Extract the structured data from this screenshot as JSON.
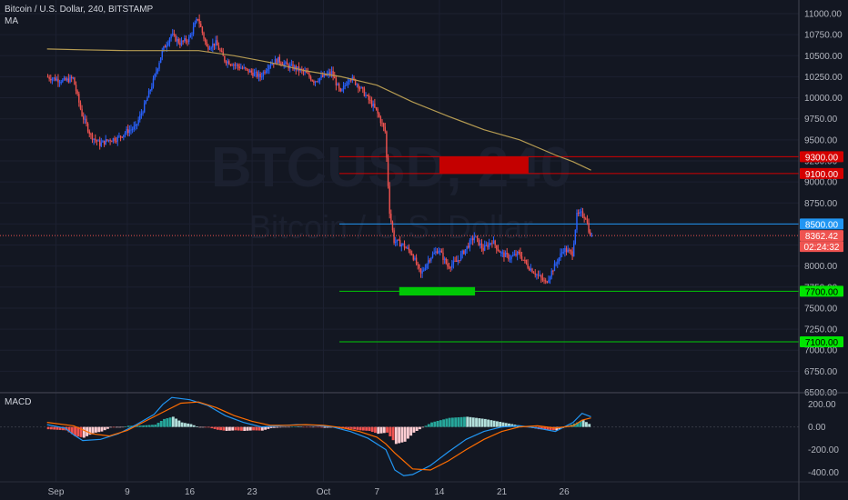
{
  "header": {
    "symbol_title": "Bitcoin / U.S. Dollar, 240, BITSTAMP",
    "indicator_label": "MA"
  },
  "watermark": {
    "ticker": "BTCUSD, 240",
    "name": "Bitcoin / U.S. Dollar"
  },
  "macd": {
    "label": "MACD",
    "ticks": [
      "200.00",
      "0.00",
      "-200.00",
      "-400.00"
    ]
  },
  "price_axis": {
    "ticks": [
      "11000.00",
      "10750.00",
      "10500.00",
      "10250.00",
      "10000.00",
      "9750.00",
      "9500.00",
      "9250.00",
      "9000.00",
      "8750.00",
      "8500.00",
      "8250.00",
      "8000.00",
      "7750.00",
      "7500.00",
      "7250.00",
      "7000.00",
      "6750.00",
      "6500.00"
    ]
  },
  "time_axis": {
    "labels": [
      "Sep",
      "9",
      "16",
      "23",
      "Oct",
      "7",
      "14",
      "21",
      "26"
    ]
  },
  "badges": {
    "res_top": "9300.00",
    "res_bottom": "9100.00",
    "blue_level": "8500.00",
    "last_price": "8362.42",
    "countdown": "02:24:32",
    "support": "7700.00",
    "low_support": "7100.00"
  },
  "colors": {
    "background": "#131722",
    "up": "#2962ff",
    "down": "#ef5350",
    "ma": "#b59b52",
    "resistance": "#d50000",
    "support": "#00c805",
    "blue_line": "#2196f3"
  },
  "chart_data": {
    "type": "candlestick",
    "symbol": "BTCUSD",
    "exchange": "BITSTAMP",
    "interval": "240",
    "ylim": [
      6500,
      11050
    ],
    "x_axis": [
      "Sep",
      "9",
      "16",
      "23",
      "Oct",
      "7",
      "14",
      "21",
      "26"
    ],
    "price_path": [
      [
        -1,
        10250
      ],
      [
        1,
        10200
      ],
      [
        2,
        10230
      ],
      [
        3,
        9800
      ],
      [
        4,
        9550
      ],
      [
        5,
        9450
      ],
      [
        6,
        9500
      ],
      [
        7,
        9520
      ],
      [
        8,
        9600
      ],
      [
        9,
        9650
      ],
      [
        10,
        9900
      ],
      [
        11,
        10200
      ],
      [
        12,
        10550
      ],
      [
        13,
        10750
      ],
      [
        14,
        10650
      ],
      [
        15,
        10700
      ],
      [
        16,
        10950
      ],
      [
        17,
        10600
      ],
      [
        18,
        10650
      ],
      [
        19,
        10450
      ],
      [
        20,
        10400
      ],
      [
        21,
        10350
      ],
      [
        22,
        10300
      ],
      [
        23,
        10250
      ],
      [
        24,
        10400
      ],
      [
        25,
        10450
      ],
      [
        26,
        10380
      ],
      [
        27,
        10350
      ],
      [
        28,
        10300
      ],
      [
        29,
        10200
      ],
      [
        30,
        10250
      ],
      [
        31,
        10300
      ],
      [
        32,
        10050
      ],
      [
        33,
        10250
      ],
      [
        34,
        10150
      ],
      [
        35,
        10000
      ],
      [
        36,
        9850
      ],
      [
        37,
        9600
      ],
      [
        37.5,
        8650
      ],
      [
        38,
        8300
      ],
      [
        39,
        8250
      ],
      [
        40,
        8150
      ],
      [
        41,
        7900
      ],
      [
        42,
        8100
      ],
      [
        43,
        8200
      ],
      [
        44,
        8000
      ],
      [
        45,
        8050
      ],
      [
        46,
        8200
      ],
      [
        47,
        8350
      ],
      [
        48,
        8200
      ],
      [
        49,
        8300
      ],
      [
        50,
        8150
      ],
      [
        51,
        8100
      ],
      [
        52,
        8150
      ],
      [
        53,
        8000
      ],
      [
        54,
        7900
      ],
      [
        55,
        7800
      ],
      [
        56,
        8000
      ],
      [
        57,
        8200
      ],
      [
        58,
        8150
      ],
      [
        58.5,
        8600
      ],
      [
        59,
        8620
      ],
      [
        59.5,
        8580
      ],
      [
        60,
        8362.42
      ]
    ],
    "moving_average": [
      [
        -1,
        10580
      ],
      [
        3,
        10570
      ],
      [
        8,
        10560
      ],
      [
        12,
        10560
      ],
      [
        16,
        10560
      ],
      [
        20,
        10500
      ],
      [
        24,
        10420
      ],
      [
        28,
        10320
      ],
      [
        32,
        10250
      ],
      [
        36,
        10150
      ],
      [
        40,
        9950
      ],
      [
        44,
        9780
      ],
      [
        48,
        9620
      ],
      [
        52,
        9500
      ],
      [
        56,
        9320
      ],
      [
        58,
        9240
      ],
      [
        60,
        9140
      ]
    ],
    "macd_line": [
      [
        -1,
        20
      ],
      [
        1,
        -10
      ],
      [
        2,
        -70
      ],
      [
        3,
        -120
      ],
      [
        5,
        -110
      ],
      [
        7,
        -60
      ],
      [
        9,
        20
      ],
      [
        11,
        110
      ],
      [
        12,
        200
      ],
      [
        13,
        260
      ],
      [
        15,
        240
      ],
      [
        17,
        190
      ],
      [
        19,
        100
      ],
      [
        21,
        40
      ],
      [
        23,
        0
      ],
      [
        25,
        10
      ],
      [
        27,
        20
      ],
      [
        29,
        15
      ],
      [
        31,
        0
      ],
      [
        33,
        -40
      ],
      [
        35,
        -100
      ],
      [
        37,
        -200
      ],
      [
        38,
        -380
      ],
      [
        39,
        -430
      ],
      [
        40,
        -420
      ],
      [
        42,
        -340
      ],
      [
        44,
        -220
      ],
      [
        46,
        -110
      ],
      [
        48,
        -40
      ],
      [
        50,
        0
      ],
      [
        52,
        10
      ],
      [
        54,
        -10
      ],
      [
        56,
        -40
      ],
      [
        58,
        40
      ],
      [
        59,
        120
      ],
      [
        60,
        90
      ]
    ],
    "signal_line": [
      [
        -1,
        40
      ],
      [
        2,
        10
      ],
      [
        4,
        -60
      ],
      [
        6,
        -80
      ],
      [
        8,
        -30
      ],
      [
        10,
        50
      ],
      [
        12,
        130
      ],
      [
        14,
        210
      ],
      [
        16,
        220
      ],
      [
        18,
        170
      ],
      [
        20,
        100
      ],
      [
        22,
        50
      ],
      [
        24,
        15
      ],
      [
        26,
        15
      ],
      [
        28,
        20
      ],
      [
        30,
        15
      ],
      [
        32,
        -5
      ],
      [
        34,
        -40
      ],
      [
        36,
        -90
      ],
      [
        37,
        -150
      ],
      [
        38,
        -230
      ],
      [
        39,
        -300
      ],
      [
        40,
        -370
      ],
      [
        42,
        -380
      ],
      [
        44,
        -300
      ],
      [
        46,
        -200
      ],
      [
        48,
        -110
      ],
      [
        50,
        -40
      ],
      [
        52,
        0
      ],
      [
        54,
        10
      ],
      [
        56,
        -10
      ],
      [
        58,
        10
      ],
      [
        59,
        60
      ],
      [
        60,
        80
      ]
    ],
    "levels": [
      {
        "price": 9300,
        "color": "#d50000"
      },
      {
        "price": 9100,
        "color": "#d50000"
      },
      {
        "price": 8500,
        "color": "#2196f3"
      },
      {
        "price": 7700,
        "color": "#00c805"
      },
      {
        "price": 7100,
        "color": "#00c805"
      }
    ],
    "zones": [
      {
        "type": "resistance",
        "from": 9100,
        "to": 9300,
        "x_start": 43,
        "x_end": 53
      },
      {
        "type": "support",
        "from": 7650,
        "to": 7750,
        "x_start": 38.5,
        "x_end": 47
      }
    ]
  }
}
